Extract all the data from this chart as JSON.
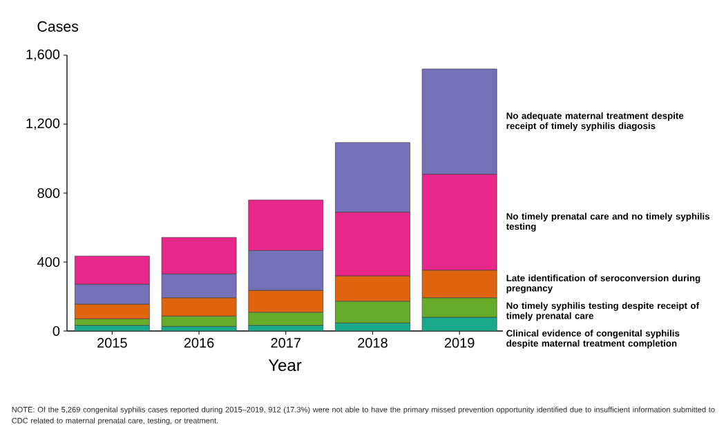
{
  "chart_data": {
    "type": "bar",
    "ylabel": "Cases",
    "xlabel": "Year",
    "categories": [
      "2015",
      "2016",
      "2017",
      "2018",
      "2019"
    ],
    "ylim": [
      0,
      1600
    ],
    "yticks": [
      0,
      {
        "value": 400,
        "label": "400"
      },
      {
        "value": 800,
        "label": "800"
      },
      {
        "value": 1200,
        "label": "1,200"
      },
      {
        "value": 1600,
        "label": "1,600"
      }
    ],
    "series": [
      {
        "name": "Clinical evidence of congenital syphilis despite maternal treatment completion",
        "color": "#1aa98a",
        "base": [
          0,
          0,
          0,
          0,
          0
        ],
        "values": [
          33,
          27,
          33,
          47,
          80
        ]
      },
      {
        "name": "No timely syphilis testing despite receipt of timely prenatal care",
        "color": "#66ab2a",
        "base": [
          33,
          27,
          33,
          47,
          80
        ],
        "values": [
          38,
          60,
          76,
          126,
          113
        ]
      },
      {
        "name": "Late identification of seroconversion during pregnancy",
        "color": "#e0630f",
        "base": [
          71,
          87,
          109,
          173,
          193
        ],
        "values": [
          85,
          106,
          127,
          147,
          160
        ]
      },
      {
        "name": "No adequate maternal treatment despite receipt of timely syphilis diagosis",
        "color": "#7570b8",
        "base": [
          156,
          193,
          236,
          689,
          909
        ],
        "values": [
          116,
          138,
          231,
          404,
          611
        ]
      },
      {
        "name": "No timely prenatal care and no timely syphilis testing",
        "color": "#e7278a",
        "base": [
          272,
          331,
          467,
          320,
          353
        ],
        "values": [
          163,
          212,
          293,
          369,
          556
        ]
      }
    ],
    "annotations": [
      "NOTE: Of the 5,269 congenital syphilis cases reported during 2015–2019, 912 (17.3%) were not able to have the primary missed prevention opportunity identified due to insufficient information submitted to CDC related to maternal prenatal care, testing, or treatment."
    ]
  }
}
